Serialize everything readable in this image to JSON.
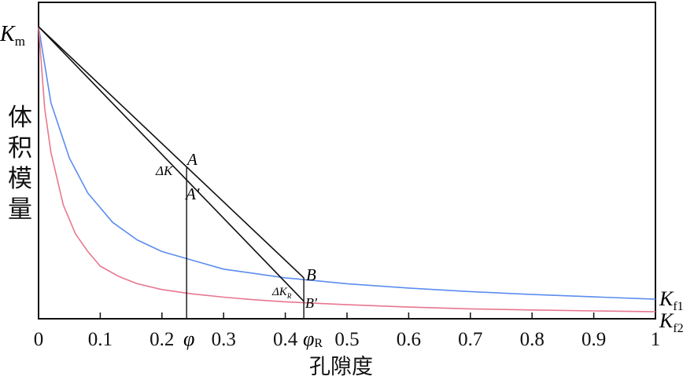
{
  "chart_data": {
    "type": "line",
    "xlabel": "孔隙度",
    "ylabel_chars": [
      "体",
      "积",
      "模",
      "量"
    ],
    "xlim": [
      0,
      1
    ],
    "x_ticks": [
      {
        "value": 0,
        "label": "0"
      },
      {
        "value": 0.1,
        "label": "0.1"
      },
      {
        "value": 0.2,
        "label": "0.2"
      },
      {
        "value": 0.3,
        "label": "0.3"
      },
      {
        "value": 0.4,
        "label": "0.4"
      },
      {
        "value": 0.5,
        "label": "0.5"
      },
      {
        "value": 0.6,
        "label": "0.6"
      },
      {
        "value": 0.7,
        "label": "0.7"
      },
      {
        "value": 0.8,
        "label": "0.8"
      },
      {
        "value": 0.9,
        "label": "0.9"
      },
      {
        "value": 1,
        "label": "1"
      }
    ],
    "y_marker": {
      "main": "K",
      "sub": "m"
    },
    "series": [
      {
        "name": "K_f1",
        "color": "#5b8def",
        "x": [
          0,
          0.02,
          0.05,
          0.08,
          0.12,
          0.16,
          0.2,
          0.25,
          0.3,
          0.35,
          0.4,
          0.45,
          0.5,
          0.6,
          0.7,
          0.8,
          0.9,
          1
        ],
        "y": [
          1.0,
          0.74,
          0.55,
          0.43,
          0.33,
          0.27,
          0.23,
          0.2,
          0.17,
          0.155,
          0.14,
          0.13,
          0.12,
          0.105,
          0.093,
          0.083,
          0.075,
          0.067
        ]
      },
      {
        "name": "K_f2",
        "color": "#e8778f",
        "x": [
          0,
          0.01,
          0.02,
          0.04,
          0.06,
          0.08,
          0.1,
          0.13,
          0.16,
          0.2,
          0.25,
          0.3,
          0.35,
          0.4,
          0.5,
          0.6,
          0.7,
          0.8,
          0.9,
          1
        ],
        "y": [
          1.0,
          0.72,
          0.57,
          0.39,
          0.29,
          0.23,
          0.18,
          0.145,
          0.12,
          0.1,
          0.085,
          0.074,
          0.065,
          0.058,
          0.048,
          0.04,
          0.034,
          0.03,
          0.027,
          0.024
        ]
      },
      {
        "name": "linear upper",
        "color": "#111111",
        "x": [
          0,
          0.43
        ],
        "y": [
          1.0,
          0.14
        ]
      },
      {
        "name": "linear lower",
        "color": "#111111",
        "x": [
          0,
          0.43
        ],
        "y": [
          1.0,
          0.06
        ]
      }
    ],
    "verticals": [
      {
        "x": 0.24,
        "y_top": 0.52
      },
      {
        "x": 0.43,
        "y_top": 0.14
      }
    ],
    "annotations": {
      "A": "A",
      "A_prime": "A'",
      "B": "B",
      "B_prime": "B'",
      "delta_K": "ΔK",
      "delta_KR_main": "ΔK",
      "delta_KR_sub": "R",
      "phi": "φ",
      "phi_R_main": "φ",
      "phi_R_sub": "R",
      "Kf1_main": "K",
      "Kf1_sub": "f1",
      "Kf2_main": "K",
      "Kf2_sub": "f2"
    }
  }
}
